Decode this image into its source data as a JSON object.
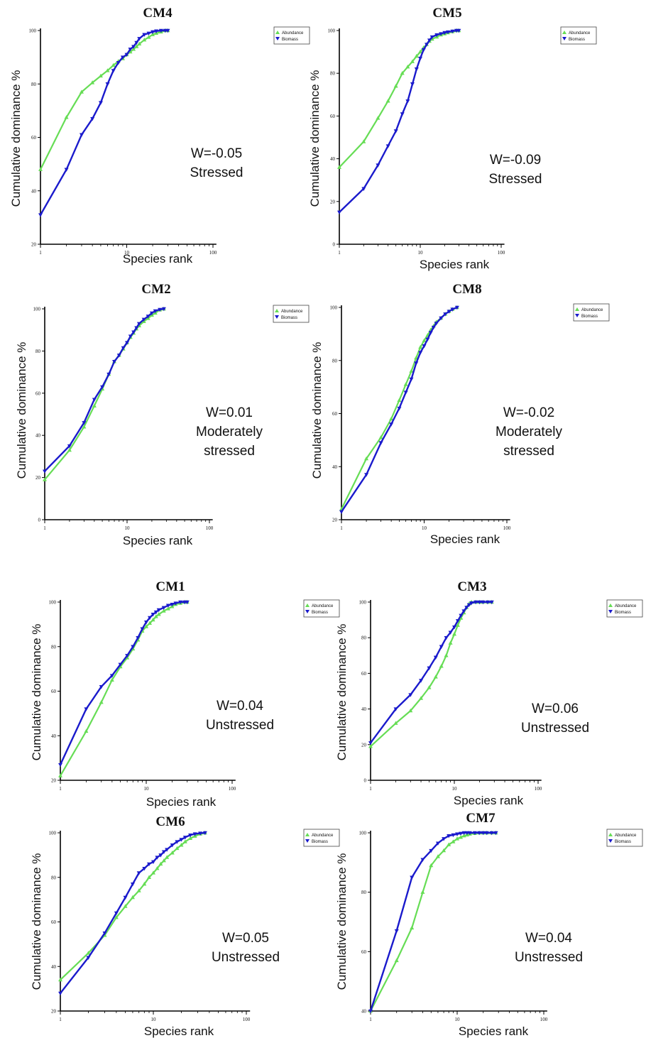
{
  "figure": {
    "colors": {
      "abundance": "#66dd55",
      "biomass": "#1a1acc"
    },
    "legend": {
      "abundance": "Abundance",
      "biomass": "Biomass"
    }
  },
  "chart_data": [
    {
      "type": "line",
      "title": "CM4",
      "xlabel": "Species rank",
      "ylabel": "Cumulative dominance %",
      "x_scale": "log",
      "xlim": [
        1,
        100
      ],
      "xticks": [
        "1",
        "10",
        "100"
      ],
      "ylim": [
        20,
        100
      ],
      "yticks": [
        "20",
        "40",
        "60",
        "80",
        "100"
      ],
      "annotation": [
        "W=-0.05",
        "Stressed"
      ],
      "legend_position": "top-right",
      "series": [
        {
          "name": "Abundance",
          "x": [
            1,
            2,
            3,
            4,
            5,
            6,
            7,
            8,
            9,
            10,
            11,
            12,
            13,
            14,
            16,
            18,
            20,
            22,
            25,
            28,
            30
          ],
          "y": [
            48,
            67.5,
            77,
            80.5,
            83,
            85,
            87,
            88.5,
            89.5,
            91,
            92,
            93,
            94,
            95,
            96.5,
            97.5,
            98.5,
            99,
            99.5,
            100,
            100
          ]
        },
        {
          "name": "Biomass",
          "x": [
            1,
            2,
            3,
            4,
            5,
            6,
            7,
            8,
            9,
            10,
            11,
            12,
            13,
            14,
            16,
            18,
            20,
            22,
            25,
            28,
            30
          ],
          "y": [
            31,
            48,
            61,
            67,
            73,
            80,
            85,
            88,
            90,
            91,
            93,
            94,
            95.5,
            97,
            98.5,
            99,
            99.5,
            99.8,
            100,
            100,
            100
          ]
        }
      ]
    },
    {
      "type": "line",
      "title": "CM5",
      "xlabel": "Species rank",
      "ylabel": "Cumulative dominance %",
      "x_scale": "log",
      "xlim": [
        1,
        100
      ],
      "xticks": [
        "1",
        "10",
        "100"
      ],
      "ylim": [
        0,
        100
      ],
      "yticks": [
        "0",
        "20",
        "40",
        "60",
        "80",
        "100"
      ],
      "annotation": [
        "W=-0.09",
        "Stressed"
      ],
      "legend_position": "top-right",
      "series": [
        {
          "name": "Abundance",
          "x": [
            1,
            2,
            3,
            4,
            5,
            6,
            7,
            8,
            9,
            10,
            11,
            12,
            13,
            14,
            16,
            18,
            20,
            22,
            25,
            28,
            30
          ],
          "y": [
            36,
            48,
            59,
            67,
            74,
            80,
            83,
            85.5,
            88,
            90,
            92,
            93.5,
            95,
            96,
            97,
            98,
            98.5,
            99,
            99.5,
            100,
            100
          ]
        },
        {
          "name": "Biomass",
          "x": [
            1,
            2,
            3,
            4,
            5,
            6,
            7,
            8,
            9,
            10,
            11,
            12,
            13,
            14,
            16,
            18,
            20,
            22,
            25,
            28,
            30
          ],
          "y": [
            15,
            26,
            37,
            46,
            53,
            61,
            67,
            75,
            82,
            87,
            91,
            93.5,
            95.5,
            97,
            98,
            98.5,
            99,
            99.3,
            99.7,
            100,
            100
          ]
        }
      ]
    },
    {
      "type": "line",
      "title": "CM2",
      "xlabel": "Species rank",
      "ylabel": "Cumulative dominance %",
      "x_scale": "log",
      "xlim": [
        1,
        100
      ],
      "xticks": [
        "1",
        "10",
        "100"
      ],
      "ylim": [
        0,
        100
      ],
      "yticks": [
        "0",
        "20",
        "40",
        "60",
        "80",
        "100"
      ],
      "annotation": [
        "W=0.01",
        "Moderately",
        "stressed"
      ],
      "legend_position": "top-right",
      "series": [
        {
          "name": "Abundance",
          "x": [
            1,
            2,
            3,
            4,
            5,
            6,
            7,
            8,
            9,
            10,
            11,
            12,
            13,
            14,
            16,
            18,
            20,
            22,
            25,
            28
          ],
          "y": [
            19,
            33,
            44,
            54,
            62,
            69,
            75,
            78,
            81,
            84,
            86.5,
            88.5,
            90.5,
            92,
            94,
            95.5,
            97,
            98,
            99.5,
            100
          ]
        },
        {
          "name": "Biomass",
          "x": [
            1,
            2,
            3,
            4,
            5,
            6,
            7,
            8,
            9,
            10,
            11,
            12,
            13,
            14,
            16,
            18,
            20,
            22,
            25,
            28
          ],
          "y": [
            23,
            35,
            46,
            57,
            63,
            69,
            75,
            78,
            81.5,
            84,
            87,
            89,
            91,
            93,
            95,
            96.5,
            98,
            99,
            99.7,
            100
          ]
        }
      ]
    },
    {
      "type": "line",
      "title": "CM8",
      "xlabel": "Species rank",
      "ylabel": "Cumulative dominance %",
      "x_scale": "log",
      "xlim": [
        1,
        100
      ],
      "xticks": [
        "1",
        "10",
        "100"
      ],
      "ylim": [
        20,
        100
      ],
      "yticks": [
        "20",
        "40",
        "60",
        "80",
        "100"
      ],
      "annotation": [
        "W=-0.02",
        "Moderately",
        "stressed"
      ],
      "legend_position": "top-right",
      "series": [
        {
          "name": "Abundance",
          "x": [
            1,
            2,
            3,
            4,
            5,
            6,
            7,
            8,
            9,
            10,
            11,
            12,
            13,
            14,
            16,
            18,
            20,
            22,
            25
          ],
          "y": [
            24,
            43,
            51,
            58,
            65,
            71,
            76,
            81,
            85,
            87.5,
            89.5,
            91.5,
            93,
            94.5,
            96,
            97.5,
            98.5,
            99.3,
            100
          ]
        },
        {
          "name": "Biomass",
          "x": [
            1,
            2,
            3,
            4,
            5,
            6,
            7,
            8,
            9,
            10,
            11,
            12,
            13,
            14,
            16,
            18,
            20,
            22,
            25
          ],
          "y": [
            23,
            37,
            49,
            56,
            62,
            68,
            73,
            79,
            83,
            85.5,
            88,
            90.5,
            92.5,
            94,
            96,
            97.5,
            98.5,
            99.3,
            100
          ]
        }
      ]
    },
    {
      "type": "line",
      "title": "CM1",
      "xlabel": "Species rank",
      "ylabel": "Cumulative dominance %",
      "x_scale": "log",
      "xlim": [
        1,
        100
      ],
      "xticks": [
        "1",
        "10",
        "100"
      ],
      "ylim": [
        20,
        100
      ],
      "yticks": [
        "20",
        "40",
        "60",
        "80",
        "100"
      ],
      "annotation": [
        "W=0.04",
        "Unstressed"
      ],
      "legend_position": "top-right",
      "series": [
        {
          "name": "Abundance",
          "x": [
            1,
            2,
            3,
            4,
            5,
            6,
            7,
            8,
            9,
            10,
            11,
            12,
            13,
            14,
            16,
            18,
            20,
            22,
            25,
            28,
            30
          ],
          "y": [
            22,
            42,
            55,
            65,
            71,
            75,
            79,
            83,
            87,
            89,
            90.5,
            92,
            93.5,
            94.5,
            96,
            97,
            98,
            99,
            99.5,
            100,
            100
          ]
        },
        {
          "name": "Biomass",
          "x": [
            1,
            2,
            3,
            4,
            5,
            6,
            7,
            8,
            9,
            10,
            11,
            12,
            13,
            14,
            16,
            18,
            20,
            22,
            25,
            28,
            30
          ],
          "y": [
            27,
            52,
            62,
            67,
            72,
            76,
            80,
            84,
            88,
            91,
            93,
            94.5,
            95.5,
            96.5,
            97.5,
            98.5,
            99,
            99.5,
            100,
            100,
            100
          ]
        }
      ]
    },
    {
      "type": "line",
      "title": "CM3",
      "xlabel": "Species rank",
      "ylabel": "Cumulative dominance %",
      "x_scale": "log",
      "xlim": [
        1,
        100
      ],
      "xticks": [
        "1",
        "10",
        "100"
      ],
      "ylim": [
        0,
        100
      ],
      "yticks": [
        "0",
        "20",
        "40",
        "60",
        "80",
        "100"
      ],
      "annotation": [
        "W=0.06",
        "Unstressed"
      ],
      "legend_position": "top-right",
      "series": [
        {
          "name": "Abundance",
          "x": [
            1,
            2,
            3,
            4,
            5,
            6,
            7,
            8,
            9,
            10,
            11,
            12,
            13,
            14,
            15,
            16,
            18,
            20,
            22,
            25,
            28
          ],
          "y": [
            19,
            32,
            39,
            46,
            52,
            58,
            64,
            70,
            77,
            82,
            87,
            91,
            94,
            97,
            99,
            100,
            100,
            100,
            100,
            100,
            100
          ]
        },
        {
          "name": "Biomass",
          "x": [
            1,
            2,
            3,
            4,
            5,
            6,
            7,
            8,
            9,
            10,
            11,
            12,
            13,
            14,
            15,
            16,
            18,
            20,
            22,
            25,
            28
          ],
          "y": [
            21,
            40,
            48,
            56,
            63,
            69,
            75,
            80,
            83,
            86,
            89.5,
            92.5,
            95,
            97,
            98.5,
            99.5,
            100,
            100,
            100,
            100,
            100
          ]
        }
      ]
    },
    {
      "type": "line",
      "title": "CM6",
      "xlabel": "Species rank",
      "ylabel": "Cumulative dominance %",
      "x_scale": "log",
      "xlim": [
        1,
        100
      ],
      "xticks": [
        "1",
        "10",
        "100"
      ],
      "ylim": [
        20,
        100
      ],
      "yticks": [
        "20",
        "40",
        "60",
        "80",
        "100"
      ],
      "annotation": [
        "W=0.05",
        "Unstressed"
      ],
      "legend_position": "top-right",
      "series": [
        {
          "name": "Abundance",
          "x": [
            1,
            2,
            3,
            4,
            5,
            6,
            7,
            8,
            9,
            10,
            11,
            12,
            13,
            14,
            16,
            18,
            20,
            22,
            25,
            28,
            32,
            36
          ],
          "y": [
            34,
            46,
            54,
            62,
            67,
            71,
            74,
            77,
            80,
            82,
            84,
            86,
            87.5,
            89,
            91,
            93,
            94.5,
            96,
            97.5,
            98.5,
            99.5,
            100
          ]
        },
        {
          "name": "Biomass",
          "x": [
            1,
            2,
            3,
            4,
            5,
            6,
            7,
            8,
            9,
            10,
            11,
            12,
            13,
            14,
            16,
            18,
            20,
            22,
            25,
            28,
            32,
            36
          ],
          "y": [
            28,
            44,
            55,
            64,
            71,
            77,
            82,
            84,
            86,
            87,
            89,
            90,
            91.5,
            92.5,
            94.5,
            96,
            97,
            98,
            99,
            99.5,
            99.8,
            100
          ]
        }
      ]
    },
    {
      "type": "line",
      "title": "CM7",
      "xlabel": "Species rank",
      "ylabel": "Cumulative dominance %",
      "x_scale": "log",
      "xlim": [
        1,
        100
      ],
      "xticks": [
        "1",
        "10",
        "100"
      ],
      "ylim": [
        40,
        100
      ],
      "yticks": [
        "40",
        "60",
        "80",
        "100"
      ],
      "annotation": [
        "W=0.04",
        "Unstressed"
      ],
      "legend_position": "top-right",
      "series": [
        {
          "name": "Abundance",
          "x": [
            1,
            2,
            3,
            4,
            5,
            6,
            7,
            8,
            9,
            10,
            11,
            12,
            13,
            14,
            16,
            18,
            20,
            22,
            25,
            28
          ],
          "y": [
            40,
            57,
            68,
            80,
            89,
            92,
            94,
            96,
            97,
            98,
            98.5,
            99,
            99.3,
            99.6,
            99.8,
            100,
            100,
            100,
            100,
            100
          ]
        },
        {
          "name": "Biomass",
          "x": [
            1,
            2,
            3,
            4,
            5,
            6,
            7,
            8,
            9,
            10,
            11,
            12,
            13,
            14,
            16,
            18,
            20,
            22,
            25,
            28
          ],
          "y": [
            40,
            67,
            85,
            91,
            94,
            96.5,
            98,
            99,
            99.3,
            99.6,
            99.8,
            100,
            100,
            100,
            100,
            100,
            100,
            100,
            100,
            100
          ]
        }
      ]
    }
  ]
}
